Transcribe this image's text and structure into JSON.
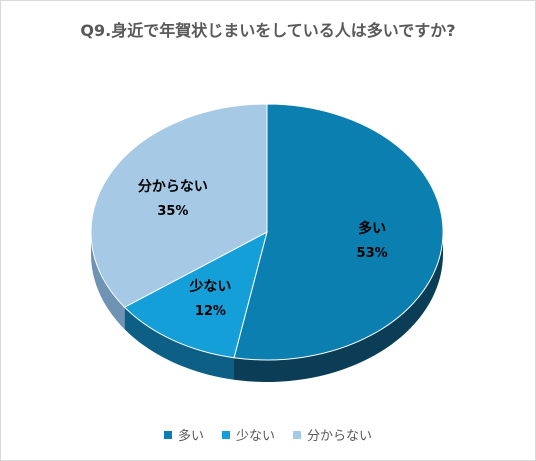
{
  "chart_data": {
    "type": "pie",
    "title": "Q9.身近で年賀状じまいをしている人は多いですか?",
    "categories": [
      "多い",
      "少ない",
      "分からない"
    ],
    "values": [
      53,
      12,
      35
    ],
    "value_labels": [
      "53%",
      "12%",
      "35%"
    ],
    "colors": [
      "#0a7fb0",
      "#149fd8",
      "#a6c9e6"
    ],
    "side_colors": [
      "#0b3e56",
      "#0d5f85",
      "#6f93b3"
    ],
    "legend_position": "bottom"
  }
}
